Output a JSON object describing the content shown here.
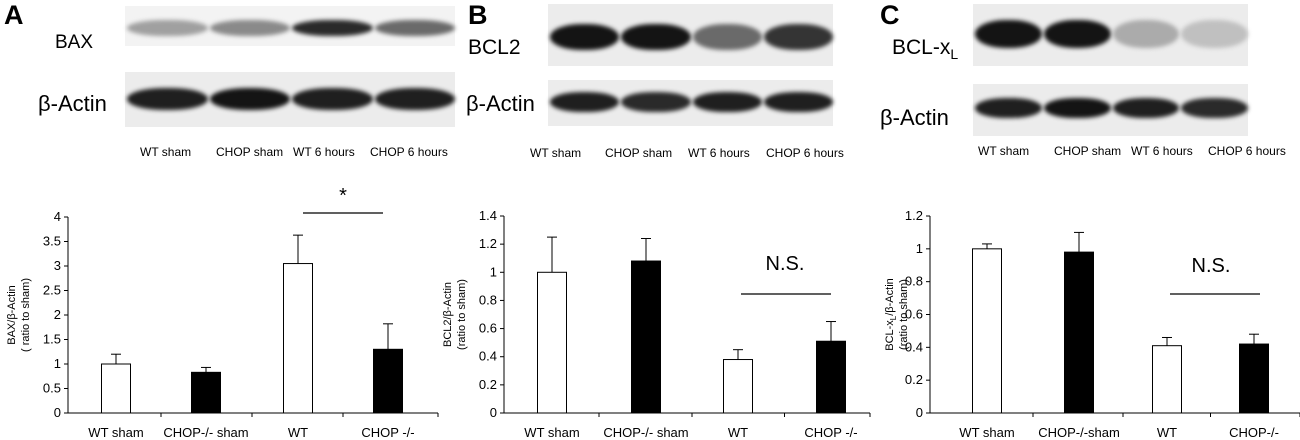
{
  "panels": [
    {
      "letter": "A",
      "blot": {
        "target_label": "BAX",
        "loading_label": "β-Actin",
        "lane_labels": [
          "WT sham",
          "CHOP sham",
          "WT 6 hours",
          "CHOP 6 hours"
        ],
        "target_band_intensity": [
          0.35,
          0.45,
          0.9,
          0.6
        ],
        "loading_band_intensity": [
          0.95,
          1.0,
          0.95,
          0.95
        ]
      }
    },
    {
      "letter": "B",
      "blot": {
        "target_label": "BCL2",
        "loading_label": "β-Actin",
        "lane_labels": [
          "WT sham",
          "CHOP sham",
          "WT 6 hours",
          "CHOP 6 hours"
        ],
        "target_band_intensity": [
          1.0,
          1.0,
          0.6,
          0.85
        ],
        "loading_band_intensity": [
          0.95,
          0.9,
          0.95,
          0.95
        ]
      }
    },
    {
      "letter": "C",
      "blot": {
        "target_label_main": "BCL-x",
        "target_label_sub": "L",
        "loading_label": "β-Actin",
        "lane_labels": [
          "WT sham",
          "CHOP sham",
          "WT 6 hours",
          "CHOP 6 hours"
        ],
        "target_band_intensity": [
          1.0,
          1.0,
          0.3,
          0.2
        ],
        "loading_band_intensity": [
          0.95,
          1.0,
          0.95,
          0.9
        ]
      }
    }
  ],
  "chart_data": [
    {
      "type": "bar",
      "categories": [
        "WT sham",
        "CHOP-/- sham",
        "WT",
        "CHOP -/-"
      ],
      "values": [
        1.0,
        0.83,
        3.05,
        1.3
      ],
      "errors": [
        0.2,
        0.1,
        0.58,
        0.52
      ],
      "bar_fill": [
        "open",
        "filled",
        "open",
        "filled"
      ],
      "ylabel_line1": "BAX/β-Actin",
      "ylabel_line2": "( ratio to sham)",
      "ylim": [
        0,
        4
      ],
      "yticks": [
        "0",
        "0.5",
        "1",
        "1.5",
        "2",
        "2.5",
        "3",
        "3.5",
        "4"
      ],
      "yticks_values": [
        0,
        0.5,
        1,
        1.5,
        2,
        2.5,
        3,
        3.5,
        4
      ],
      "annotation": "*",
      "grid": false
    },
    {
      "type": "bar",
      "categories": [
        "WT sham",
        "CHOP-/- sham",
        "WT",
        "CHOP -/-"
      ],
      "values": [
        1.0,
        1.08,
        0.38,
        0.51
      ],
      "errors": [
        0.25,
        0.16,
        0.07,
        0.14
      ],
      "bar_fill": [
        "open",
        "filled",
        "open",
        "filled"
      ],
      "ylabel_line1": "BCL2/β-Actin",
      "ylabel_line2": "(ratio to sham)",
      "ylim": [
        0,
        1.4
      ],
      "yticks": [
        "0",
        "0.2",
        "0.4",
        "0.6",
        "0.8",
        "1",
        "1.2",
        "1.4"
      ],
      "yticks_values": [
        0,
        0.2,
        0.4,
        0.6,
        0.8,
        1,
        1.2,
        1.4
      ],
      "annotation": "N.S.",
      "grid": false
    },
    {
      "type": "bar",
      "categories": [
        "WT sham",
        "CHOP-/-sham",
        "WT",
        "CHOP-/-"
      ],
      "values": [
        1.0,
        0.98,
        0.41,
        0.42
      ],
      "errors": [
        0.03,
        0.12,
        0.05,
        0.06
      ],
      "bar_fill": [
        "open",
        "filled",
        "open",
        "filled"
      ],
      "ylabel_line1_main": "BCL-x",
      "ylabel_line1_sub": "L",
      "ylabel_line1_tail": "/β-Actin",
      "ylabel_line2": "(ratio to sham)",
      "ylim": [
        0,
        1.2
      ],
      "yticks": [
        "0",
        "0.2",
        "0.4",
        "0.6",
        "0.8",
        "1",
        "1.2"
      ],
      "yticks_values": [
        0,
        0.2,
        0.4,
        0.6,
        0.8,
        1,
        1.2
      ],
      "annotation": "N.S.",
      "grid": false
    }
  ]
}
